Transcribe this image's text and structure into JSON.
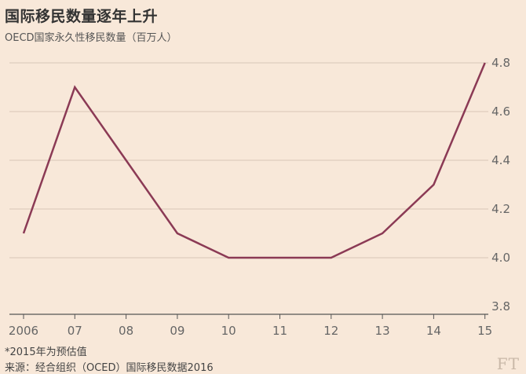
{
  "title": "国际移民数量逐年上升",
  "subtitle": "OECD国家永久性移民数量（百万人）",
  "note": "*2015年为预估值",
  "source": "来源：经合组织（OCED）国际移民数据2016",
  "logo": "FT",
  "colors": {
    "background": "#f8e8d9",
    "line": "#8b3a55",
    "grid": "#d9c6b6",
    "axis": "#555555"
  },
  "chart_data": {
    "type": "line",
    "x": [
      "2006",
      "07",
      "08",
      "09",
      "10",
      "11",
      "12",
      "13",
      "14",
      "15"
    ],
    "series": [
      {
        "values": [
          4.1,
          4.7,
          4.4,
          4.1,
          4.0,
          4.0,
          4.0,
          4.1,
          4.3,
          4.8
        ]
      }
    ],
    "ylim": [
      3.8,
      4.8
    ],
    "yticks": [
      "3.8",
      "4.0",
      "4.2",
      "4.4",
      "4.6",
      "4.8"
    ],
    "grid": true,
    "y_axis_side": "right"
  }
}
